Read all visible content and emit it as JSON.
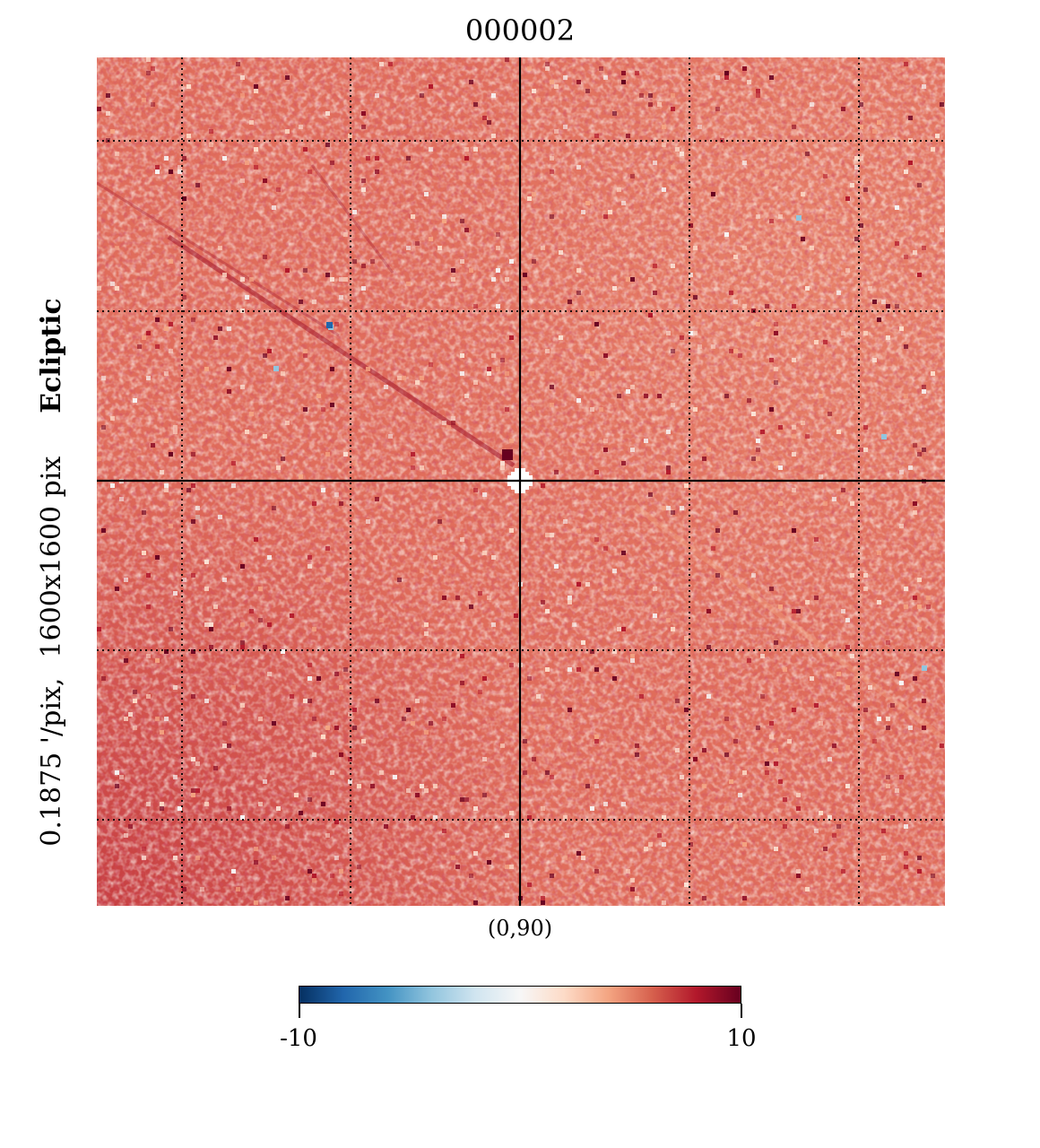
{
  "figure": {
    "title": "000002",
    "side_label": {
      "resolution": "0.1875 '/pix,",
      "size": "1600x1600 pix",
      "coord_system": "Ecliptic"
    },
    "center_coord": "(0,90)"
  },
  "colorbar": {
    "min_label": "-10",
    "max_label": "10",
    "min": -10,
    "max": 10,
    "colormap": "RdBu_r",
    "stops": [
      "#053061",
      "#2166ac",
      "#4393c3",
      "#92c5de",
      "#d1e5f0",
      "#f7f7f7",
      "#fddbc7",
      "#f4a582",
      "#d6604d",
      "#b2182b",
      "#67001f"
    ]
  },
  "map": {
    "background_color": "#e0705f",
    "graticule_lines": "dotted",
    "crosshair": "solid",
    "center_blank_color": "#ffffff"
  }
}
